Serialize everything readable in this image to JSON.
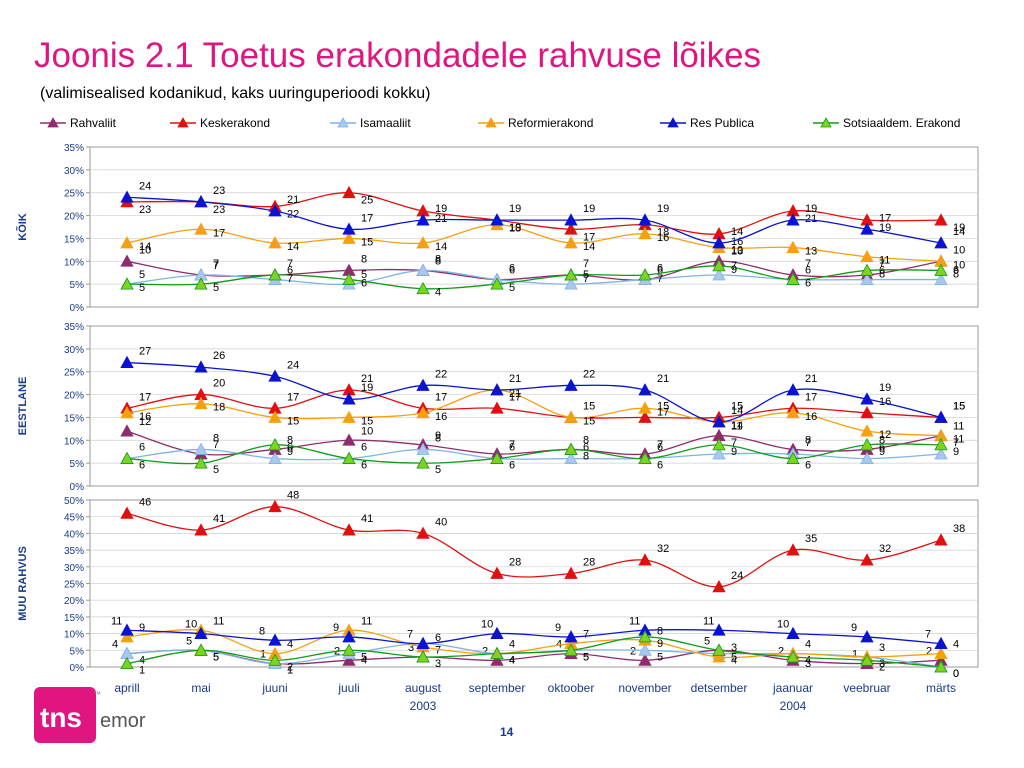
{
  "page": {
    "title": "Joonis 2.1 Toetus erakondadele rahvuse lõikes",
    "subtitle": "(valimisealised kodanikud, kaks uuringuperioodi kokku)",
    "page_number": "14",
    "logo": {
      "mark": "tns",
      "text": "emor",
      "superscript": "™"
    }
  },
  "colors": {
    "title": "#e0157f",
    "axis_labels": "#1a3a8a"
  },
  "chart_data": {
    "type": "line",
    "categories": [
      "aprill",
      "mai",
      "juuni",
      "juuli",
      "august",
      "september",
      "oktoober",
      "november",
      "detsember",
      "jaanuar",
      "veebruar",
      "märts"
    ],
    "year_labels": [
      {
        "category": "august",
        "label": "2003"
      },
      {
        "category": "jaanuar",
        "label": "2004"
      }
    ],
    "legend_position": "top",
    "grid": true,
    "series_styles": [
      {
        "name": "Rahvaliit",
        "color": "#8e2d6c",
        "marker": "triangle",
        "fill": "#8e2d6c"
      },
      {
        "name": "Keskerakond",
        "color": "#e01010",
        "marker": "triangle",
        "fill": "#e01010"
      },
      {
        "name": "Isamaaliit",
        "color": "#7fb4e6",
        "marker": "triangle",
        "fill": "#a8c8ec"
      },
      {
        "name": "Reformierakond",
        "color": "#f5a011",
        "marker": "triangle",
        "fill": "#f5a011"
      },
      {
        "name": "Res Publica",
        "color": "#0a14d0",
        "marker": "triangle",
        "fill": "#0a14d0"
      },
      {
        "name": "Sotsiaaldem. Erakond",
        "color": "#129a1a",
        "marker": "triangle",
        "fill": "#7ed321"
      }
    ],
    "panels": [
      {
        "label": "KÕIK",
        "ylim": [
          0,
          35
        ],
        "yticks": [
          "0%",
          "5%",
          "10%",
          "15%",
          "20%",
          "25%",
          "30%",
          "35%"
        ],
        "series": [
          {
            "name": "Rahvaliit",
            "values": [
              10,
              7,
              7,
              8,
              8,
              6,
              7,
              6,
              10,
              7,
              7,
              10
            ]
          },
          {
            "name": "Keskerakond",
            "values": [
              23,
              23,
              22,
              25,
              21,
              19,
              17,
              18,
              16,
              21,
              19,
              19
            ]
          },
          {
            "name": "Isamaaliit",
            "values": [
              5,
              7,
              6,
              5,
              8,
              6,
              5,
              6,
              7,
              6,
              6,
              6
            ]
          },
          {
            "name": "Reformierakond",
            "values": [
              14,
              17,
              14,
              15,
              14,
              18,
              14,
              16,
              13,
              13,
              11,
              10
            ]
          },
          {
            "name": "Res Publica",
            "values": [
              24,
              23,
              21,
              17,
              19,
              19,
              19,
              19,
              14,
              19,
              17,
              14
            ]
          },
          {
            "name": "Sotsiaaldem. Erakond",
            "values": [
              5,
              5,
              7,
              6,
              4,
              5,
              7,
              7,
              9,
              6,
              8,
              8
            ]
          }
        ]
      },
      {
        "label": "EESTLANE",
        "ylim": [
          0,
          35
        ],
        "yticks": [
          "0%",
          "5%",
          "10%",
          "15%",
          "20%",
          "25%",
          "30%",
          "35%"
        ],
        "series": [
          {
            "name": "Rahvaliit",
            "values": [
              12,
              7,
              8,
              10,
              9,
              7,
              8,
              7,
              11,
              8,
              8,
              11
            ]
          },
          {
            "name": "Keskerakond",
            "values": [
              17,
              20,
              17,
              21,
              17,
              17,
              15,
              15,
              15,
              17,
              16,
              15
            ]
          },
          {
            "name": "Isamaaliit",
            "values": [
              6,
              8,
              6,
              6,
              8,
              6,
              6,
              6,
              7,
              7,
              6,
              7
            ]
          },
          {
            "name": "Reformierakond",
            "values": [
              16,
              18,
              15,
              15,
              16,
              21,
              15,
              17,
              14,
              16,
              12,
              11
            ]
          },
          {
            "name": "Res Publica",
            "values": [
              27,
              26,
              24,
              19,
              22,
              21,
              22,
              21,
              14,
              21,
              19,
              15
            ]
          },
          {
            "name": "Sotsiaaldem. Erakond",
            "values": [
              6,
              5,
              9,
              6,
              5,
              6,
              8,
              6,
              9,
              6,
              9,
              9
            ]
          }
        ]
      },
      {
        "label": "MUU RAHVUS",
        "ylim": [
          0,
          50
        ],
        "yticks": [
          "0%",
          "5%",
          "10%",
          "15%",
          "20%",
          "25%",
          "30%",
          "35%",
          "40%",
          "45%",
          "50%"
        ],
        "series": [
          {
            "name": "Rahvaliit",
            "values": [
              4,
              5,
              1,
              2,
              3,
              2,
              4,
              2,
              5,
              2,
              1,
              2
            ]
          },
          {
            "name": "Keskerakond",
            "values": [
              46,
              41,
              48,
              41,
              40,
              28,
              28,
              32,
              24,
              35,
              32,
              38
            ]
          },
          {
            "name": "Isamaaliit",
            "values": [
              4,
              5,
              1,
              4,
              7,
              4,
              5,
              5,
              4,
              4,
              3,
              0
            ]
          },
          {
            "name": "Reformierakond",
            "values": [
              9,
              11,
              4,
              11,
              6,
              4,
              7,
              8,
              3,
              4,
              3,
              4
            ]
          },
          {
            "name": "Res Publica",
            "values": [
              11,
              10,
              8,
              9,
              7,
              10,
              9,
              11,
              11,
              10,
              9,
              7
            ]
          },
          {
            "name": "Sotsiaaldem. Erakond",
            "values": [
              1,
              5,
              2,
              5,
              3,
              4,
              5,
              9,
              5,
              3,
              2,
              0
            ]
          }
        ]
      }
    ]
  }
}
